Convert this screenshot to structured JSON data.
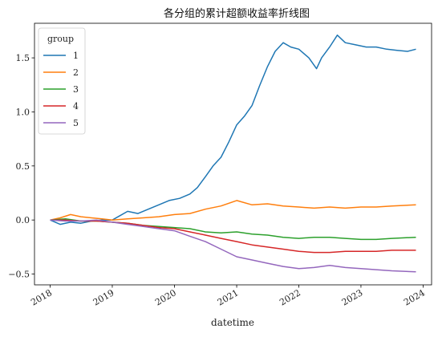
{
  "chart_data": {
    "type": "line",
    "title": "各分组的累计超额收益率折线图",
    "xlabel": "datetime",
    "ylabel": "",
    "x_type": "date",
    "xlim": [
      "2017-10-01",
      "2024-02-20"
    ],
    "ylim": [
      -0.6,
      1.82
    ],
    "x_ticks": [
      {
        "value": "2018-01-01",
        "label": "2018"
      },
      {
        "value": "2019-01-01",
        "label": "2019"
      },
      {
        "value": "2020-01-01",
        "label": "2020"
      },
      {
        "value": "2021-01-01",
        "label": "2021"
      },
      {
        "value": "2022-01-01",
        "label": "2022"
      },
      {
        "value": "2023-01-01",
        "label": "2023"
      },
      {
        "value": "2024-01-01",
        "label": "2024"
      }
    ],
    "y_ticks": [
      {
        "value": -0.5,
        "label": "−0.5"
      },
      {
        "value": 0.0,
        "label": "0.0"
      },
      {
        "value": 0.5,
        "label": "0.5"
      },
      {
        "value": 1.0,
        "label": "1.0"
      },
      {
        "value": 1.5,
        "label": "1.5"
      }
    ],
    "grid": false,
    "legend": {
      "title": "group",
      "placement": "top-left"
    },
    "series": [
      {
        "name": "1",
        "color": "#1f77b4",
        "points": [
          [
            "2018-01-01",
            0.0
          ],
          [
            "2018-03-01",
            -0.04
          ],
          [
            "2018-05-01",
            -0.02
          ],
          [
            "2018-07-01",
            -0.03
          ],
          [
            "2018-09-01",
            -0.01
          ],
          [
            "2018-11-01",
            0.0
          ],
          [
            "2019-01-01",
            0.0
          ],
          [
            "2019-02-15",
            0.04
          ],
          [
            "2019-04-01",
            0.08
          ],
          [
            "2019-06-01",
            0.06
          ],
          [
            "2019-08-01",
            0.1
          ],
          [
            "2019-10-01",
            0.14
          ],
          [
            "2019-12-01",
            0.18
          ],
          [
            "2020-02-01",
            0.2
          ],
          [
            "2020-04-01",
            0.24
          ],
          [
            "2020-05-15",
            0.3
          ],
          [
            "2020-07-01",
            0.4
          ],
          [
            "2020-08-15",
            0.5
          ],
          [
            "2020-10-01",
            0.58
          ],
          [
            "2020-11-15",
            0.72
          ],
          [
            "2021-01-01",
            0.88
          ],
          [
            "2021-02-15",
            0.96
          ],
          [
            "2021-04-01",
            1.06
          ],
          [
            "2021-05-15",
            1.24
          ],
          [
            "2021-07-01",
            1.42
          ],
          [
            "2021-08-15",
            1.56
          ],
          [
            "2021-10-01",
            1.64
          ],
          [
            "2021-11-15",
            1.6
          ],
          [
            "2022-01-01",
            1.58
          ],
          [
            "2022-03-01",
            1.5
          ],
          [
            "2022-04-15",
            1.4
          ],
          [
            "2022-05-15",
            1.5
          ],
          [
            "2022-07-01",
            1.6
          ],
          [
            "2022-08-15",
            1.71
          ],
          [
            "2022-10-01",
            1.64
          ],
          [
            "2022-12-01",
            1.62
          ],
          [
            "2023-02-01",
            1.6
          ],
          [
            "2023-04-01",
            1.6
          ],
          [
            "2023-06-01",
            1.58
          ],
          [
            "2023-08-01",
            1.57
          ],
          [
            "2023-10-01",
            1.56
          ],
          [
            "2023-11-20",
            1.58
          ]
        ]
      },
      {
        "name": "2",
        "color": "#ff7f0e",
        "points": [
          [
            "2018-01-01",
            0.0
          ],
          [
            "2018-03-01",
            0.02
          ],
          [
            "2018-05-01",
            0.05
          ],
          [
            "2018-07-01",
            0.03
          ],
          [
            "2018-09-01",
            0.02
          ],
          [
            "2018-11-01",
            0.01
          ],
          [
            "2019-01-01",
            0.0
          ],
          [
            "2019-04-01",
            0.01
          ],
          [
            "2019-07-01",
            0.02
          ],
          [
            "2019-10-01",
            0.03
          ],
          [
            "2020-01-01",
            0.05
          ],
          [
            "2020-04-01",
            0.06
          ],
          [
            "2020-07-01",
            0.1
          ],
          [
            "2020-10-01",
            0.13
          ],
          [
            "2021-01-01",
            0.18
          ],
          [
            "2021-04-01",
            0.14
          ],
          [
            "2021-07-01",
            0.15
          ],
          [
            "2021-10-01",
            0.13
          ],
          [
            "2022-01-01",
            0.12
          ],
          [
            "2022-04-01",
            0.11
          ],
          [
            "2022-07-01",
            0.12
          ],
          [
            "2022-10-01",
            0.11
          ],
          [
            "2023-01-01",
            0.12
          ],
          [
            "2023-04-01",
            0.12
          ],
          [
            "2023-07-01",
            0.13
          ],
          [
            "2023-11-20",
            0.14
          ]
        ]
      },
      {
        "name": "3",
        "color": "#2ca02c",
        "points": [
          [
            "2018-01-01",
            0.0
          ],
          [
            "2018-04-01",
            0.01
          ],
          [
            "2018-07-01",
            -0.01
          ],
          [
            "2018-10-01",
            -0.01
          ],
          [
            "2019-01-01",
            -0.02
          ],
          [
            "2019-04-01",
            -0.03
          ],
          [
            "2019-07-01",
            -0.05
          ],
          [
            "2019-10-01",
            -0.06
          ],
          [
            "2020-01-01",
            -0.07
          ],
          [
            "2020-04-01",
            -0.08
          ],
          [
            "2020-07-01",
            -0.11
          ],
          [
            "2020-10-01",
            -0.12
          ],
          [
            "2021-01-01",
            -0.11
          ],
          [
            "2021-04-01",
            -0.13
          ],
          [
            "2021-07-01",
            -0.14
          ],
          [
            "2021-10-01",
            -0.16
          ],
          [
            "2022-01-01",
            -0.17
          ],
          [
            "2022-04-01",
            -0.16
          ],
          [
            "2022-07-01",
            -0.16
          ],
          [
            "2022-10-01",
            -0.17
          ],
          [
            "2023-01-01",
            -0.18
          ],
          [
            "2023-04-01",
            -0.18
          ],
          [
            "2023-07-01",
            -0.17
          ],
          [
            "2023-11-20",
            -0.16
          ]
        ]
      },
      {
        "name": "4",
        "color": "#d62728",
        "points": [
          [
            "2018-01-01",
            0.0
          ],
          [
            "2018-04-01",
            0.0
          ],
          [
            "2018-07-01",
            -0.01
          ],
          [
            "2018-10-01",
            -0.01
          ],
          [
            "2019-01-01",
            -0.02
          ],
          [
            "2019-04-01",
            -0.03
          ],
          [
            "2019-07-01",
            -0.05
          ],
          [
            "2019-10-01",
            -0.07
          ],
          [
            "2020-01-01",
            -0.08
          ],
          [
            "2020-04-01",
            -0.11
          ],
          [
            "2020-07-01",
            -0.14
          ],
          [
            "2020-10-01",
            -0.17
          ],
          [
            "2021-01-01",
            -0.2
          ],
          [
            "2021-04-01",
            -0.23
          ],
          [
            "2021-07-01",
            -0.25
          ],
          [
            "2021-10-01",
            -0.27
          ],
          [
            "2022-01-01",
            -0.29
          ],
          [
            "2022-04-01",
            -0.3
          ],
          [
            "2022-07-01",
            -0.3
          ],
          [
            "2022-10-01",
            -0.29
          ],
          [
            "2023-01-01",
            -0.29
          ],
          [
            "2023-04-01",
            -0.29
          ],
          [
            "2023-07-01",
            -0.28
          ],
          [
            "2023-11-20",
            -0.28
          ]
        ]
      },
      {
        "name": "5",
        "color": "#9467bd",
        "points": [
          [
            "2018-01-01",
            0.0
          ],
          [
            "2018-04-01",
            -0.01
          ],
          [
            "2018-07-01",
            -0.01
          ],
          [
            "2018-10-01",
            0.0
          ],
          [
            "2019-01-01",
            -0.02
          ],
          [
            "2019-04-01",
            -0.04
          ],
          [
            "2019-07-01",
            -0.06
          ],
          [
            "2019-10-01",
            -0.08
          ],
          [
            "2020-01-01",
            -0.1
          ],
          [
            "2020-04-01",
            -0.15
          ],
          [
            "2020-07-01",
            -0.2
          ],
          [
            "2020-10-01",
            -0.27
          ],
          [
            "2021-01-01",
            -0.34
          ],
          [
            "2021-04-01",
            -0.37
          ],
          [
            "2021-07-01",
            -0.4
          ],
          [
            "2021-10-01",
            -0.43
          ],
          [
            "2022-01-01",
            -0.45
          ],
          [
            "2022-04-01",
            -0.44
          ],
          [
            "2022-07-01",
            -0.42
          ],
          [
            "2022-10-01",
            -0.44
          ],
          [
            "2023-01-01",
            -0.45
          ],
          [
            "2023-04-01",
            -0.46
          ],
          [
            "2023-07-01",
            -0.47
          ],
          [
            "2023-11-20",
            -0.48
          ]
        ]
      }
    ]
  }
}
